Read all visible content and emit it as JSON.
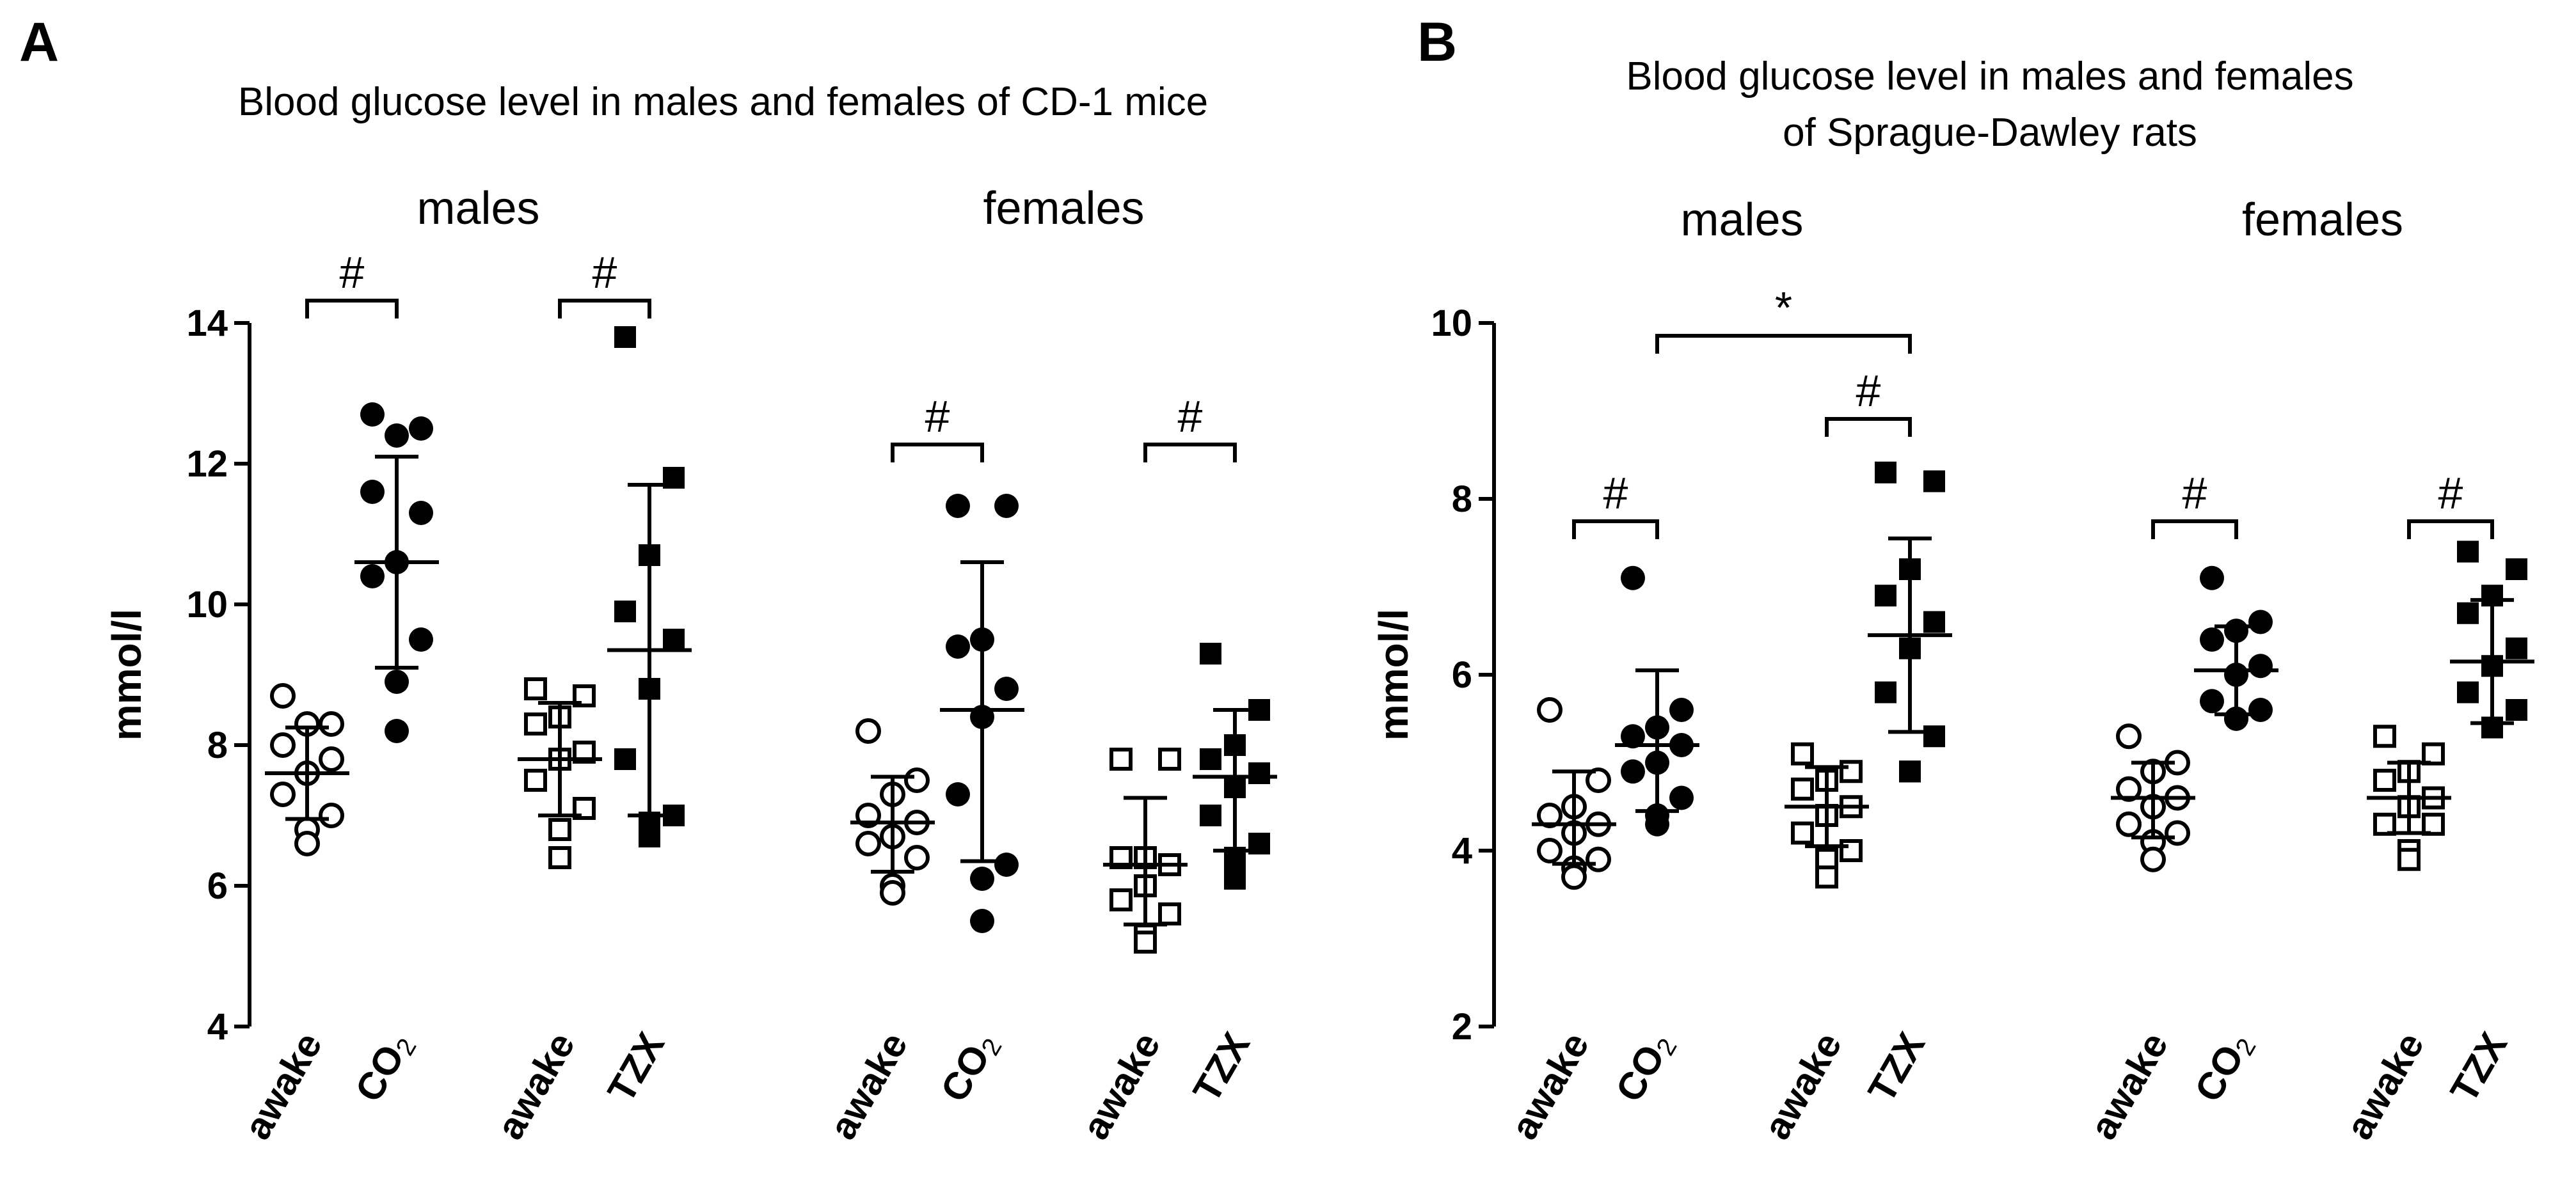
{
  "chart_data": [
    {
      "type": "scatter",
      "panel": "A",
      "title": "Blood glucose level in males and females of CD-1 mice",
      "ylabel": "mmol/l",
      "ylim": [
        4,
        14
      ],
      "yticks": [
        "4",
        "6",
        "8",
        "10",
        "12",
        "14"
      ],
      "group_labels": [
        "males",
        "females"
      ],
      "groups": [
        {
          "label": "awake",
          "sub": "",
          "marker": "open-circle",
          "mean": 7.6,
          "sd_high": 8.25,
          "sd_low": 6.95,
          "values": [
            8.7,
            8.3,
            8.3,
            8.0,
            7.8,
            7.6,
            7.3,
            7.0,
            6.8,
            6.6
          ]
        },
        {
          "label": "CO",
          "sub": "2",
          "marker": "filled-circle",
          "mean": 10.6,
          "sd_high": 12.1,
          "sd_low": 9.1,
          "values": [
            12.7,
            12.5,
            12.4,
            11.6,
            11.3,
            10.6,
            10.4,
            9.5,
            8.9,
            8.2
          ]
        },
        {
          "label": "awake",
          "sub": "",
          "marker": "open-square",
          "mean": 7.8,
          "sd_high": 8.6,
          "sd_low": 7.0,
          "values": [
            8.8,
            8.7,
            8.4,
            8.3,
            7.9,
            7.8,
            7.5,
            7.1,
            6.8,
            6.4
          ]
        },
        {
          "label": "TZX",
          "sub": "",
          "marker": "filled-square",
          "mean": 9.35,
          "sd_high": 11.7,
          "sd_low": 7.0,
          "values": [
            13.8,
            11.8,
            10.7,
            9.9,
            9.5,
            8.8,
            7.8,
            7.0,
            6.9,
            6.7
          ]
        },
        {
          "label": "awake",
          "sub": "",
          "marker": "open-circle",
          "mean": 6.9,
          "sd_high": 7.55,
          "sd_low": 6.2,
          "values": [
            8.2,
            7.5,
            7.3,
            7.0,
            6.9,
            6.7,
            6.6,
            6.4,
            6.0,
            5.9
          ]
        },
        {
          "label": "CO",
          "sub": "2",
          "marker": "filled-circle",
          "mean": 8.5,
          "sd_high": 10.6,
          "sd_low": 6.35,
          "values": [
            11.4,
            11.4,
            9.5,
            9.4,
            8.8,
            8.4,
            7.3,
            6.3,
            6.1,
            5.5
          ]
        },
        {
          "label": "awake",
          "sub": "",
          "marker": "open-square",
          "mean": 6.3,
          "sd_high": 7.25,
          "sd_low": 5.45,
          "values": [
            7.8,
            7.8,
            6.4,
            6.4,
            6.3,
            6.0,
            5.8,
            5.6,
            5.3,
            5.2
          ]
        },
        {
          "label": "TZX",
          "sub": "",
          "marker": "filled-square",
          "mean": 7.55,
          "sd_high": 8.5,
          "sd_low": 6.5,
          "values": [
            9.3,
            8.5,
            8.0,
            7.8,
            7.6,
            7.4,
            7.0,
            6.6,
            6.4,
            6.1
          ]
        }
      ],
      "brackets": [
        {
          "from": 0,
          "to": 1,
          "label": "#"
        },
        {
          "from": 2,
          "to": 3,
          "label": "#"
        },
        {
          "from": 4,
          "to": 5,
          "label": "#"
        },
        {
          "from": 6,
          "to": 7,
          "label": "#"
        }
      ]
    },
    {
      "type": "scatter",
      "panel": "B",
      "title": [
        "Blood glucose level in males and females",
        "of Sprague-Dawley rats"
      ],
      "ylabel": "mmol/l",
      "ylim": [
        2,
        10
      ],
      "yticks": [
        "2",
        "4",
        "6",
        "8",
        "10"
      ],
      "group_labels": [
        "males",
        "females"
      ],
      "groups": [
        {
          "label": "awake",
          "sub": "",
          "marker": "open-circle",
          "mean": 4.3,
          "sd_high": 4.9,
          "sd_low": 3.85,
          "values": [
            5.6,
            4.8,
            4.5,
            4.4,
            4.3,
            4.2,
            4.0,
            3.9,
            3.8,
            3.7
          ]
        },
        {
          "label": "CO",
          "sub": "2",
          "marker": "filled-circle",
          "mean": 5.2,
          "sd_high": 6.05,
          "sd_low": 4.45,
          "values": [
            7.1,
            5.6,
            5.4,
            5.3,
            5.2,
            5.0,
            4.9,
            4.6,
            4.4,
            4.3
          ]
        },
        {
          "label": "awake",
          "sub": "",
          "marker": "open-square",
          "mean": 4.5,
          "sd_high": 4.95,
          "sd_low": 4.05,
          "values": [
            5.1,
            4.9,
            4.8,
            4.7,
            4.5,
            4.4,
            4.2,
            4.0,
            3.9,
            3.7
          ]
        },
        {
          "label": "TZX",
          "sub": "",
          "marker": "filled-square",
          "mean": 6.45,
          "sd_high": 7.55,
          "sd_low": 5.35,
          "values": [
            8.3,
            8.2,
            7.2,
            6.9,
            6.6,
            6.3,
            5.8,
            5.3,
            4.9,
            4.9
          ]
        },
        {
          "label": "awake",
          "sub": "",
          "marker": "open-circle",
          "mean": 4.6,
          "sd_high": 5.0,
          "sd_low": 4.15,
          "values": [
            5.3,
            5.0,
            4.9,
            4.7,
            4.6,
            4.5,
            4.3,
            4.2,
            4.1,
            3.9
          ]
        },
        {
          "label": "CO",
          "sub": "2",
          "marker": "filled-circle",
          "mean": 6.05,
          "sd_high": 6.55,
          "sd_low": 5.55,
          "values": [
            7.1,
            6.6,
            6.5,
            6.4,
            6.1,
            6.0,
            5.7,
            5.6,
            5.5,
            5.5
          ]
        },
        {
          "label": "awake",
          "sub": "",
          "marker": "open-square",
          "mean": 4.6,
          "sd_high": 5.0,
          "sd_low": 4.2,
          "values": [
            5.3,
            5.1,
            4.9,
            4.8,
            4.6,
            4.5,
            4.3,
            4.3,
            4.0,
            3.9
          ]
        },
        {
          "label": "TZX",
          "sub": "",
          "marker": "filled-square",
          "mean": 6.15,
          "sd_high": 6.85,
          "sd_low": 5.45,
          "values": [
            7.4,
            7.2,
            6.9,
            6.7,
            6.3,
            6.1,
            5.8,
            5.6,
            5.4,
            5.4
          ]
        }
      ],
      "brackets": [
        {
          "from": 0,
          "to": 1,
          "label": "#"
        },
        {
          "from": 2,
          "to": 3,
          "label": "#"
        },
        {
          "from": 1,
          "to": 3,
          "label": "*"
        },
        {
          "from": 4,
          "to": 5,
          "label": "#"
        },
        {
          "from": 6,
          "to": 7,
          "label": "#"
        }
      ]
    }
  ]
}
